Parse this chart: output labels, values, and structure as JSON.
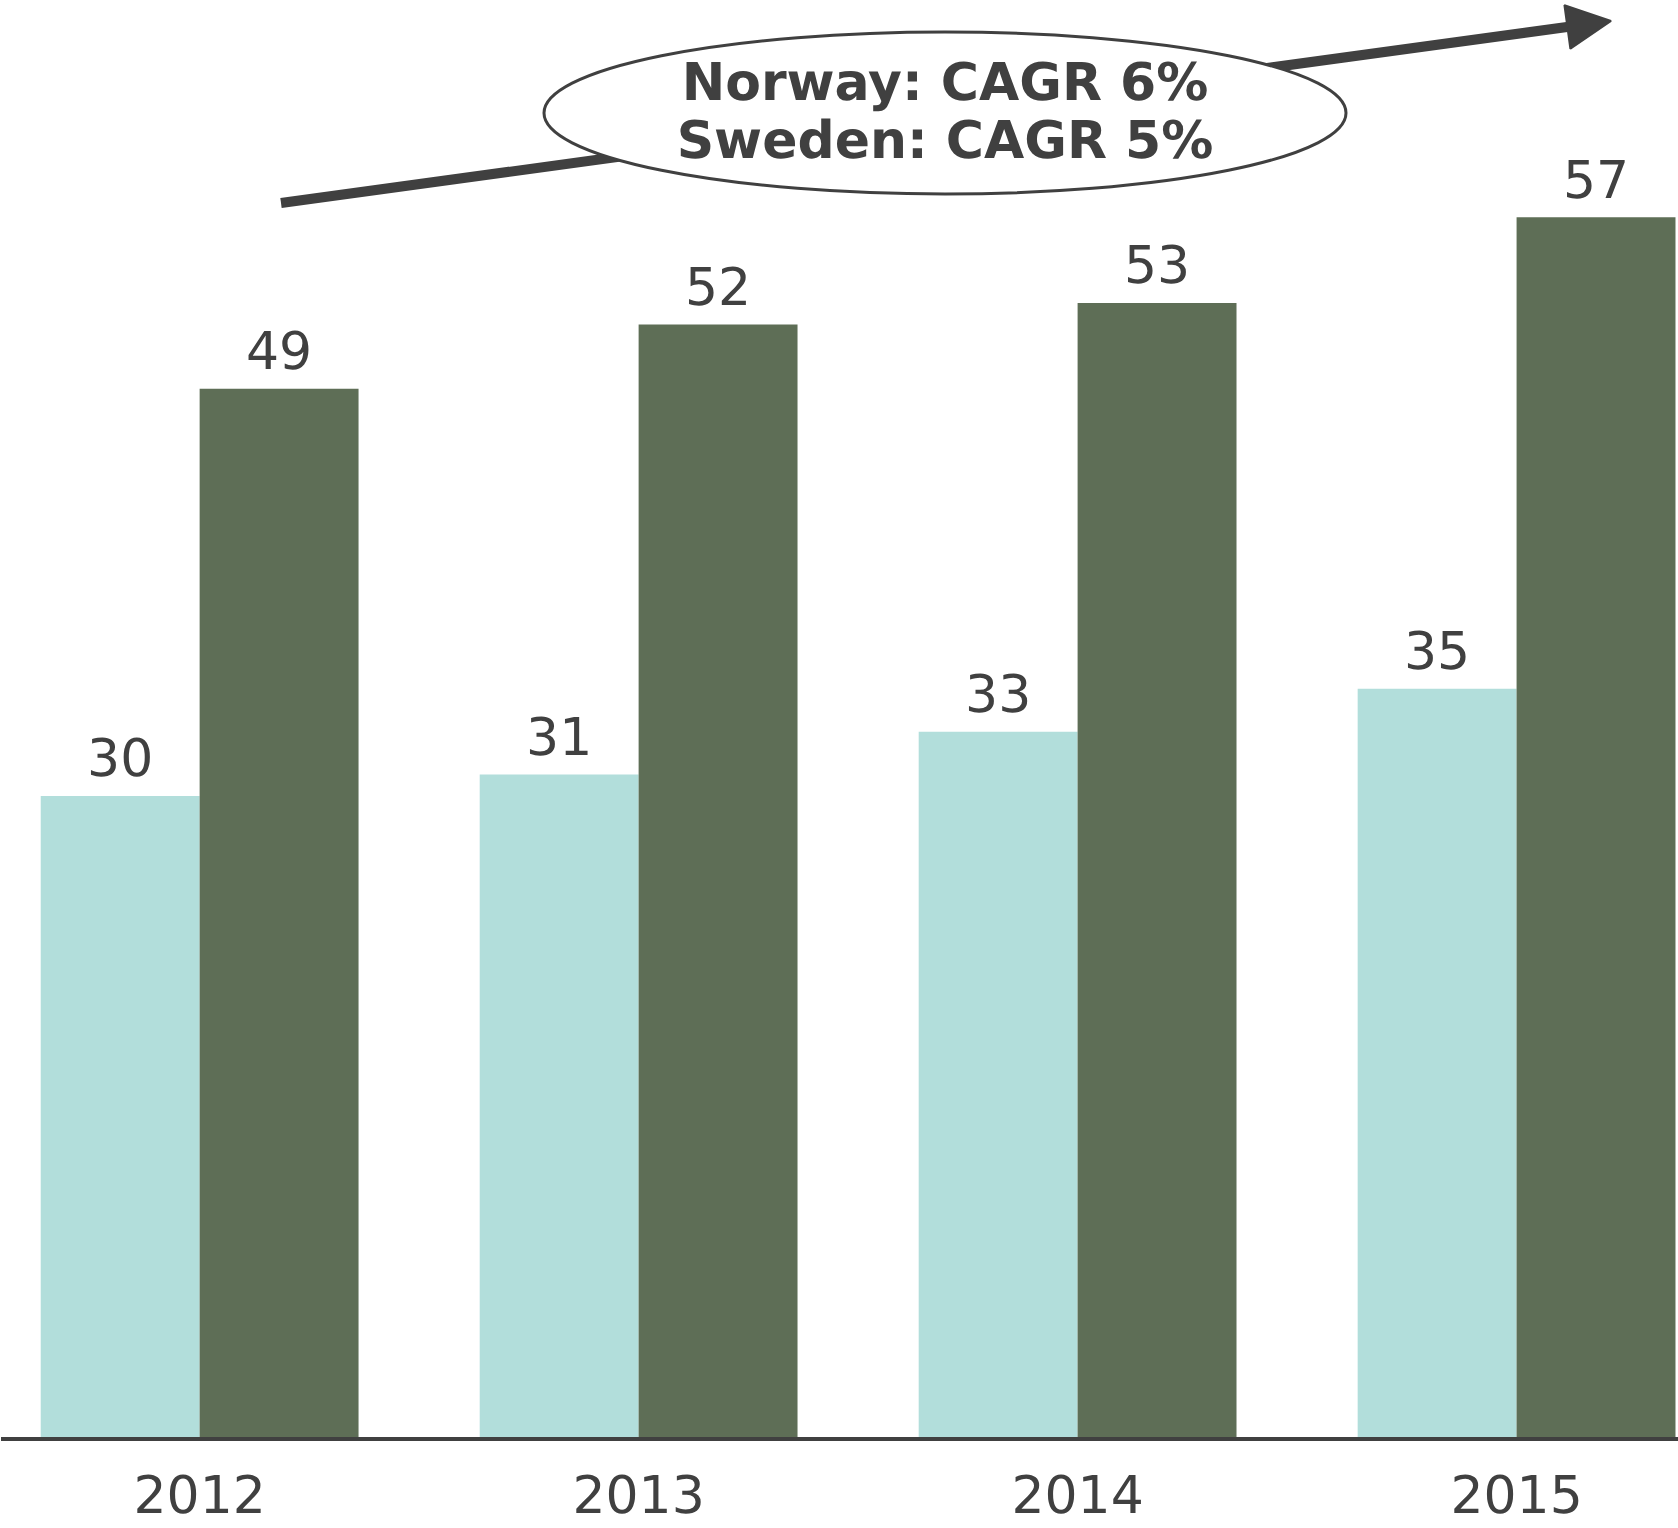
{
  "chart_data": {
    "type": "bar",
    "categories": [
      "2012",
      "2013",
      "2014",
      "2015"
    ],
    "series": [
      {
        "color": "#b2dedb",
        "values": [
          30,
          31,
          33,
          35
        ]
      },
      {
        "color": "#5e6e56",
        "values": [
          49,
          52,
          53,
          57
        ]
      }
    ],
    "data_labels": true,
    "annotations": [
      "Norway: CAGR 6%",
      "Sweden: CAGR 5%"
    ]
  }
}
